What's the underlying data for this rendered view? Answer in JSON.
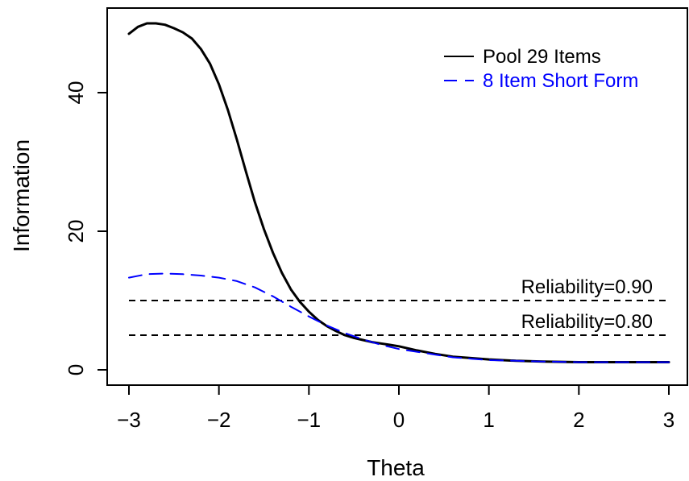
{
  "chart_data": {
    "type": "line",
    "title": "",
    "xlabel": "Theta",
    "ylabel": "Information",
    "xlim": [
      -3,
      3
    ],
    "ylim": [
      0,
      50
    ],
    "x_ticks": [
      -3,
      -2,
      -1,
      0,
      1,
      2,
      3
    ],
    "x_tick_labels": [
      "−3",
      "−2",
      "−1",
      "0",
      "1",
      "2",
      "3"
    ],
    "y_ticks": [
      0,
      20,
      40
    ],
    "y_tick_labels": [
      "0",
      "20",
      "40"
    ],
    "grid": false,
    "legend_position": "top-right",
    "series": [
      {
        "name": "Pool 29 Items",
        "color": "#000000",
        "line_style": "solid",
        "x": [
          -3.0,
          -2.9,
          -2.8,
          -2.7,
          -2.6,
          -2.5,
          -2.4,
          -2.3,
          -2.2,
          -2.1,
          -2.0,
          -1.9,
          -1.8,
          -1.7,
          -1.6,
          -1.5,
          -1.4,
          -1.3,
          -1.2,
          -1.1,
          -1.0,
          -0.9,
          -0.8,
          -0.7,
          -0.6,
          -0.5,
          -0.4,
          -0.3,
          -0.2,
          -0.1,
          0.0,
          0.2,
          0.4,
          0.6,
          0.8,
          1.0,
          1.3,
          1.6,
          2.0,
          2.5,
          3.0
        ],
        "y": [
          48.5,
          49.5,
          50.0,
          50.0,
          49.8,
          49.3,
          48.7,
          47.8,
          46.3,
          44.2,
          41.2,
          37.5,
          33.2,
          28.6,
          24.2,
          20.3,
          16.9,
          14.0,
          11.6,
          9.8,
          8.4,
          7.2,
          6.3,
          5.6,
          5.0,
          4.6,
          4.3,
          4.0,
          3.8,
          3.6,
          3.4,
          2.8,
          2.3,
          1.9,
          1.7,
          1.5,
          1.3,
          1.2,
          1.1,
          1.1,
          1.1
        ]
      },
      {
        "name": "8 Item Short Form",
        "color": "#0000ff",
        "line_style": "dashed",
        "x": [
          -3.0,
          -2.8,
          -2.6,
          -2.4,
          -2.2,
          -2.0,
          -1.8,
          -1.6,
          -1.4,
          -1.2,
          -1.0,
          -0.8,
          -0.6,
          -0.4,
          -0.2,
          0.0,
          0.2,
          0.4,
          0.6,
          0.8,
          1.0,
          1.3,
          1.6,
          2.0,
          2.5,
          3.0
        ],
        "y": [
          13.3,
          13.8,
          13.9,
          13.8,
          13.6,
          13.3,
          12.8,
          11.9,
          10.6,
          9.1,
          7.7,
          6.4,
          5.3,
          4.4,
          3.6,
          3.0,
          2.6,
          2.2,
          1.8,
          1.6,
          1.4,
          1.3,
          1.2,
          1.1,
          1.1,
          1.1
        ]
      }
    ],
    "reference_lines": [
      {
        "y": 10,
        "label": "Reliability=0.90",
        "color": "#000000",
        "line_style": "dashed"
      },
      {
        "y": 5,
        "label": "Reliability=0.80",
        "color": "#000000",
        "line_style": "dashed"
      }
    ]
  }
}
